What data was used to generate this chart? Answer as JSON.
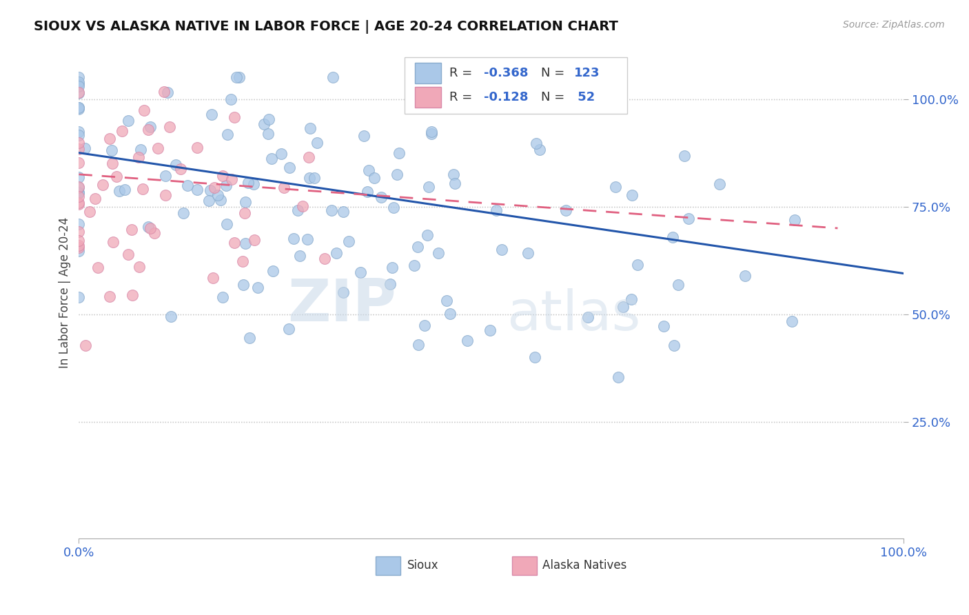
{
  "title": "SIOUX VS ALASKA NATIVE IN LABOR FORCE | AGE 20-24 CORRELATION CHART",
  "source_text": "Source: ZipAtlas.com",
  "xlabel_sioux": "Sioux",
  "xlabel_alaska": "Alaska Natives",
  "ylabel": "In Labor Force | Age 20-24",
  "xlim": [
    0.0,
    1.0
  ],
  "ylim": [
    -0.02,
    1.12
  ],
  "yticks": [
    0.25,
    0.5,
    0.75,
    1.0
  ],
  "ytick_labels": [
    "25.0%",
    "50.0%",
    "75.0%",
    "100.0%"
  ],
  "xtick_labels": [
    "0.0%",
    "100.0%"
  ],
  "blue_color": "#aac8e8",
  "pink_color": "#f0a8b8",
  "blue_line_color": "#2255aa",
  "pink_line_color": "#e06080",
  "watermark_zip": "ZIP",
  "watermark_atlas": "atlas",
  "blue_r": -0.368,
  "pink_r": -0.128,
  "blue_n": 123,
  "pink_n": 52,
  "background_color": "#ffffff",
  "grid_color": "#cccccc",
  "blue_line_start_y": 0.875,
  "blue_line_end_y": 0.595,
  "pink_line_start_y": 0.825,
  "pink_line_end_y": 0.7
}
